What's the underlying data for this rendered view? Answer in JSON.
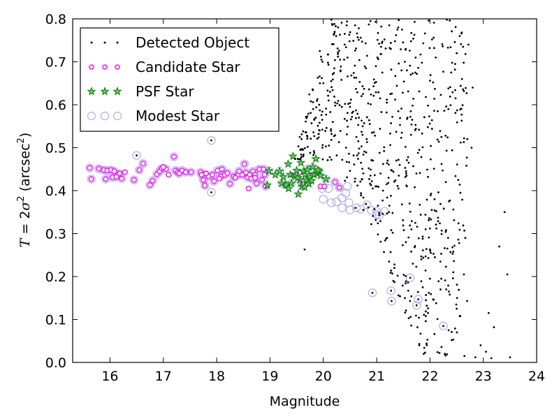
{
  "chart_data": {
    "type": "scatter",
    "xlabel": "Magnitude",
    "ylabel_parts": [
      "T",
      " = 2",
      "σ",
      "2",
      " (arcsec",
      "2",
      ")"
    ],
    "xlim": [
      15.3,
      24
    ],
    "ylim": [
      0.0,
      0.8
    ],
    "xticks": [
      "16",
      "17",
      "18",
      "19",
      "20",
      "21",
      "22",
      "23",
      "24"
    ],
    "yticks": [
      "0.0",
      "0.1",
      "0.2",
      "0.3",
      "0.4",
      "0.5",
      "0.6",
      "0.7",
      "0.8"
    ],
    "grid": false,
    "legend": {
      "placement": "top-left",
      "entries": [
        {
          "label": "Detected Object",
          "marker": "dot",
          "color": "#000000"
        },
        {
          "label": "Candidate Star",
          "marker": "circle",
          "color": "#ff00ff"
        },
        {
          "label": "PSF Star",
          "marker": "star",
          "color": "#008000"
        },
        {
          "label": "Modest Star",
          "marker": "open-circle",
          "color": "#b0b0f0"
        }
      ]
    },
    "series": [
      {
        "name": "Candidate Star",
        "color": "#ff00ff",
        "points": [
          [
            15.62,
            0.453
          ],
          [
            15.65,
            0.427
          ],
          [
            15.79,
            0.451
          ],
          [
            15.88,
            0.448
          ],
          [
            15.92,
            0.427
          ],
          [
            15.95,
            0.447
          ],
          [
            16.02,
            0.448
          ],
          [
            16.05,
            0.431
          ],
          [
            16.08,
            0.445
          ],
          [
            16.12,
            0.432
          ],
          [
            16.18,
            0.44
          ],
          [
            16.22,
            0.428
          ],
          [
            16.45,
            0.425
          ],
          [
            16.55,
            0.448
          ],
          [
            16.62,
            0.463
          ],
          [
            16.75,
            0.413
          ],
          [
            16.8,
            0.423
          ],
          [
            16.88,
            0.438
          ],
          [
            16.93,
            0.445
          ],
          [
            16.97,
            0.452
          ],
          [
            17.05,
            0.45
          ],
          [
            17.2,
            0.479
          ],
          [
            17.23,
            0.447
          ],
          [
            17.27,
            0.443
          ],
          [
            17.3,
            0.44
          ],
          [
            17.35,
            0.447
          ],
          [
            17.42,
            0.443
          ],
          [
            17.52,
            0.443
          ],
          [
            17.7,
            0.443
          ],
          [
            17.72,
            0.437
          ],
          [
            17.75,
            0.425
          ],
          [
            17.78,
            0.412
          ],
          [
            17.85,
            0.433
          ],
          [
            17.92,
            0.437
          ],
          [
            17.95,
            0.422
          ],
          [
            18.02,
            0.447
          ],
          [
            18.08,
            0.433
          ],
          [
            18.1,
            0.45
          ],
          [
            18.15,
            0.437
          ],
          [
            18.2,
            0.441
          ],
          [
            18.25,
            0.416
          ],
          [
            18.32,
            0.433
          ],
          [
            18.4,
            0.437
          ],
          [
            18.42,
            0.445
          ],
          [
            18.48,
            0.437
          ],
          [
            18.52,
            0.462
          ],
          [
            18.55,
            0.442
          ],
          [
            18.58,
            0.431
          ],
          [
            18.62,
            0.437
          ],
          [
            18.65,
            0.428
          ],
          [
            18.68,
            0.445
          ],
          [
            18.72,
            0.437
          ],
          [
            18.75,
            0.417
          ],
          [
            18.8,
            0.45
          ],
          [
            18.85,
            0.425
          ],
          [
            18.88,
            0.45
          ],
          [
            18.9,
            0.437
          ],
          [
            18.92,
            0.41
          ],
          [
            18.72,
            0.43
          ],
          [
            18.6,
            0.405
          ],
          [
            18.35,
            0.43
          ],
          [
            18.05,
            0.428
          ],
          [
            17.8,
            0.44
          ],
          [
            16.28,
            0.443
          ],
          [
            17.1,
            0.437
          ],
          [
            17.0,
            0.455
          ],
          [
            19.4,
            0.437
          ],
          [
            19.55,
            0.442
          ],
          [
            19.62,
            0.415
          ],
          [
            19.72,
            0.423
          ],
          [
            19.8,
            0.437
          ],
          [
            19.95,
            0.41
          ],
          [
            20.02,
            0.41
          ],
          [
            20.22,
            0.42
          ],
          [
            20.3,
            0.407
          ]
        ]
      },
      {
        "name": "PSF Star",
        "color": "#008000",
        "points": [
          [
            18.98,
            0.446
          ],
          [
            19.18,
            0.445
          ],
          [
            19.22,
            0.417
          ],
          [
            19.25,
            0.432
          ],
          [
            19.3,
            0.413
          ],
          [
            19.34,
            0.462
          ],
          [
            19.38,
            0.437
          ],
          [
            19.4,
            0.417
          ],
          [
            19.43,
            0.48
          ],
          [
            19.47,
            0.433
          ],
          [
            19.5,
            0.447
          ],
          [
            19.53,
            0.392
          ],
          [
            19.56,
            0.425
          ],
          [
            19.58,
            0.465
          ],
          [
            19.6,
            0.41
          ],
          [
            19.63,
            0.445
          ],
          [
            19.66,
            0.437
          ],
          [
            19.68,
            0.425
          ],
          [
            19.7,
            0.449
          ],
          [
            19.73,
            0.416
          ],
          [
            19.75,
            0.432
          ],
          [
            19.78,
            0.423
          ],
          [
            19.8,
            0.455
          ],
          [
            19.83,
            0.437
          ],
          [
            19.86,
            0.474
          ],
          [
            19.88,
            0.44
          ],
          [
            19.92,
            0.445
          ],
          [
            19.95,
            0.435
          ],
          [
            20.05,
            0.427
          ],
          [
            19.1,
            0.437
          ],
          [
            18.95,
            0.413
          ],
          [
            19.65,
            0.408
          ],
          [
            19.52,
            0.43
          ],
          [
            19.35,
            0.405
          ],
          [
            19.9,
            0.448
          ]
        ]
      },
      {
        "name": "Modest Star",
        "color": "#b0b0f0",
        "points": [
          [
            15.62,
            0.453
          ],
          [
            15.65,
            0.427
          ],
          [
            15.79,
            0.451
          ],
          [
            15.88,
            0.448
          ],
          [
            15.92,
            0.427
          ],
          [
            15.95,
            0.447
          ],
          [
            16.02,
            0.448
          ],
          [
            16.05,
            0.431
          ],
          [
            16.08,
            0.445
          ],
          [
            16.12,
            0.432
          ],
          [
            16.18,
            0.44
          ],
          [
            16.22,
            0.428
          ],
          [
            16.45,
            0.425
          ],
          [
            16.55,
            0.448
          ],
          [
            16.62,
            0.463
          ],
          [
            16.75,
            0.413
          ],
          [
            16.8,
            0.423
          ],
          [
            16.88,
            0.438
          ],
          [
            16.93,
            0.445
          ],
          [
            16.97,
            0.452
          ],
          [
            17.05,
            0.45
          ],
          [
            17.2,
            0.479
          ],
          [
            17.23,
            0.447
          ],
          [
            17.27,
            0.443
          ],
          [
            17.3,
            0.44
          ],
          [
            17.35,
            0.447
          ],
          [
            17.42,
            0.443
          ],
          [
            17.52,
            0.443
          ],
          [
            17.7,
            0.443
          ],
          [
            17.72,
            0.437
          ],
          [
            17.75,
            0.425
          ],
          [
            17.78,
            0.412
          ],
          [
            17.85,
            0.433
          ],
          [
            17.92,
            0.437
          ],
          [
            17.95,
            0.422
          ],
          [
            18.02,
            0.447
          ],
          [
            18.08,
            0.433
          ],
          [
            18.1,
            0.45
          ],
          [
            18.15,
            0.437
          ],
          [
            18.2,
            0.441
          ],
          [
            18.25,
            0.416
          ],
          [
            18.32,
            0.433
          ],
          [
            18.4,
            0.437
          ],
          [
            18.42,
            0.445
          ],
          [
            18.48,
            0.437
          ],
          [
            18.52,
            0.462
          ],
          [
            18.55,
            0.442
          ],
          [
            18.58,
            0.431
          ],
          [
            18.62,
            0.437
          ],
          [
            18.65,
            0.428
          ],
          [
            18.68,
            0.445
          ],
          [
            18.72,
            0.437
          ],
          [
            18.75,
            0.417
          ],
          [
            18.8,
            0.45
          ],
          [
            18.85,
            0.425
          ],
          [
            18.88,
            0.45
          ],
          [
            18.9,
            0.437
          ],
          [
            18.92,
            0.41
          ],
          [
            18.98,
            0.446
          ],
          [
            19.18,
            0.445
          ],
          [
            19.22,
            0.417
          ],
          [
            19.3,
            0.413
          ],
          [
            19.4,
            0.417
          ],
          [
            19.56,
            0.425
          ],
          [
            19.6,
            0.41
          ],
          [
            19.7,
            0.449
          ],
          [
            19.8,
            0.455
          ],
          [
            19.92,
            0.445
          ],
          [
            20.05,
            0.427
          ],
          [
            20.22,
            0.42
          ],
          [
            20.3,
            0.407
          ],
          [
            20.45,
            0.41
          ],
          [
            16.5,
            0.482
          ],
          [
            17.9,
            0.517
          ],
          [
            17.9,
            0.396
          ],
          [
            20.1,
            0.405
          ],
          [
            20.0,
            0.38
          ],
          [
            20.15,
            0.372
          ],
          [
            20.25,
            0.374
          ],
          [
            20.35,
            0.383
          ],
          [
            20.42,
            0.394
          ],
          [
            20.48,
            0.372
          ],
          [
            20.35,
            0.36
          ],
          [
            20.5,
            0.355
          ],
          [
            20.62,
            0.36
          ],
          [
            20.7,
            0.357
          ],
          [
            20.82,
            0.367
          ],
          [
            20.9,
            0.354
          ],
          [
            21.0,
            0.352
          ],
          [
            21.05,
            0.343
          ],
          [
            21.15,
            0.352
          ],
          [
            21.0,
            0.345
          ],
          [
            20.92,
            0.162
          ],
          [
            21.27,
            0.167
          ],
          [
            21.28,
            0.143
          ],
          [
            21.63,
            0.197
          ],
          [
            21.75,
            0.133
          ],
          [
            21.78,
            0.147
          ],
          [
            22.25,
            0.085
          ],
          [
            19.98,
            0.405
          ]
        ]
      },
      {
        "name": "Detected Object",
        "color": "#000000",
        "points": [
          [
            16.5,
            0.482
          ],
          [
            17.9,
            0.517
          ],
          [
            17.9,
            0.396
          ],
          [
            19.65,
            0.263
          ],
          [
            20.92,
            0.162
          ],
          [
            21.27,
            0.167
          ],
          [
            21.28,
            0.143
          ],
          [
            21.63,
            0.197
          ],
          [
            21.75,
            0.133
          ],
          [
            21.78,
            0.147
          ],
          [
            22.25,
            0.085
          ],
          [
            20.6,
            0.36
          ],
          [
            20.75,
            0.355
          ],
          [
            21.05,
            0.343
          ],
          [
            23.5,
            0.012
          ],
          [
            23.15,
            0.01
          ],
          [
            23.2,
            0.082
          ],
          [
            22.85,
            0.012
          ],
          [
            22.95,
            0.04
          ],
          [
            23.05,
            0.025
          ],
          [
            23.1,
            0.115
          ],
          [
            23.3,
            0.27
          ],
          [
            23.4,
            0.35
          ],
          [
            23.45,
            0.205
          ],
          [
            22.7,
            0.52
          ],
          [
            22.78,
            0.5
          ],
          [
            22.6,
            0.66
          ],
          [
            22.72,
            0.74
          ],
          [
            22.62,
            0.735
          ],
          [
            22.8,
            0.64
          ]
        ]
      }
    ]
  }
}
